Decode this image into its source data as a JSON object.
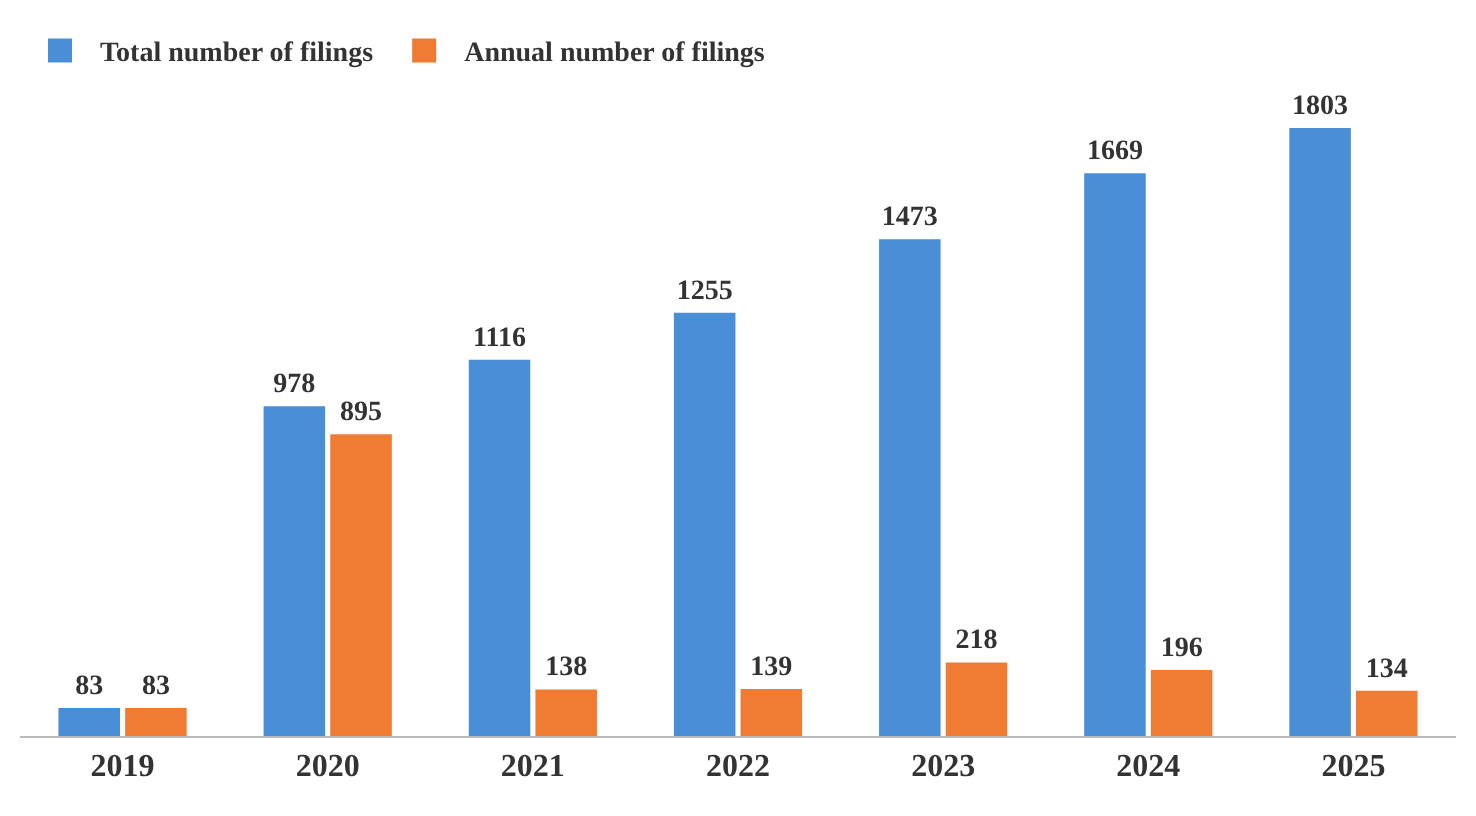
{
  "chart_data": {
    "type": "bar",
    "categories": [
      "2019",
      "2020",
      "2021",
      "2022",
      "2023",
      "2024",
      "2025"
    ],
    "series": [
      {
        "name": "Total number of filings",
        "color": "#4a8fd6",
        "values": [
          83,
          978,
          1116,
          1255,
          1473,
          1669,
          1803
        ]
      },
      {
        "name": "Annual number of filings",
        "color": "#f07c34",
        "values": [
          83,
          895,
          138,
          139,
          218,
          196,
          134
        ]
      }
    ],
    "data_labels": true,
    "legend": "top left"
  }
}
